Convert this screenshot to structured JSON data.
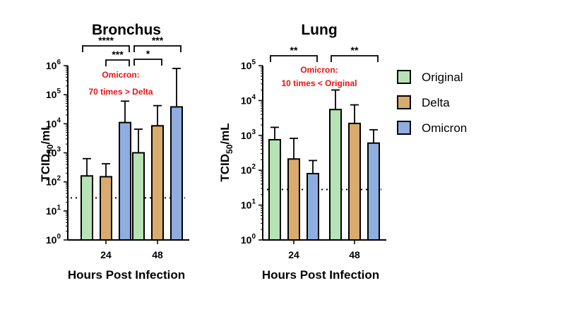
{
  "chart_data": {
    "type": "bar",
    "y_scale": "log10",
    "ylabel": "TCID50/mL",
    "xlabel": "Hours Post Infection",
    "colors": {
      "Original": "#b6e3b6",
      "Delta": "#d9ab6e",
      "Omicron": "#8eaee0"
    },
    "legend": {
      "position": "right",
      "entries": [
        "Original",
        "Delta",
        "Omicron"
      ]
    },
    "panels": [
      {
        "title": "Bronchus",
        "categories": [
          "24",
          "48"
        ],
        "ylim": [
          1,
          1000000
        ],
        "y_ticks": [
          {
            "b": "10",
            "e": "0"
          },
          {
            "b": "10",
            "e": "1"
          },
          {
            "b": "10",
            "e": "2"
          },
          {
            "b": "10",
            "e": "3"
          },
          {
            "b": "10",
            "e": "4"
          },
          {
            "b": "10",
            "e": "5"
          },
          {
            "b": "10",
            "e": "6"
          }
        ],
        "limit_of_detection": 28,
        "series": [
          {
            "name": "Original",
            "values": [
              160,
              1000
            ],
            "error_upper": [
              630,
              6500
            ]
          },
          {
            "name": "Delta",
            "values": [
              150,
              8500
            ],
            "error_upper": [
              420,
              42000
            ]
          },
          {
            "name": "Omicron",
            "values": [
              11000,
              38000
            ],
            "error_upper": [
              60000,
              800000
            ]
          }
        ],
        "significance": [
          {
            "label": "****",
            "from": [
              0,
              0
            ],
            "to": [
              0,
              2
            ]
          },
          {
            "label": "***",
            "from": [
              0,
              1
            ],
            "to": [
              0,
              2
            ]
          },
          {
            "label": "***",
            "from": [
              1,
              0
            ],
            "to": [
              1,
              2
            ]
          },
          {
            "label": "*",
            "from": [
              1,
              0
            ],
            "to": [
              1,
              1
            ]
          }
        ],
        "annotation": [
          "Omicron:",
          "70 times > Delta"
        ]
      },
      {
        "title": "Lung",
        "categories": [
          "24",
          "48"
        ],
        "ylim": [
          1,
          100000
        ],
        "y_ticks": [
          {
            "b": "10",
            "e": "0"
          },
          {
            "b": "10",
            "e": "1"
          },
          {
            "b": "10",
            "e": "2"
          },
          {
            "b": "10",
            "e": "3"
          },
          {
            "b": "10",
            "e": "4"
          },
          {
            "b": "10",
            "e": "5"
          }
        ],
        "limit_of_detection": 28,
        "series": [
          {
            "name": "Original",
            "values": [
              750,
              5500
            ],
            "error_upper": [
              1700,
              20000
            ]
          },
          {
            "name": "Delta",
            "values": [
              210,
              2200
            ],
            "error_upper": [
              820,
              7500
            ]
          },
          {
            "name": "Omicron",
            "values": [
              80,
              600
            ],
            "error_upper": [
              190,
              1450
            ]
          }
        ],
        "significance": [
          {
            "label": "**",
            "from": [
              0,
              0
            ],
            "to": [
              0,
              2
            ]
          },
          {
            "label": "**",
            "from": [
              1,
              0
            ],
            "to": [
              1,
              2
            ]
          }
        ],
        "annotation": [
          "Omicron:",
          "10 times < Original"
        ]
      }
    ]
  }
}
